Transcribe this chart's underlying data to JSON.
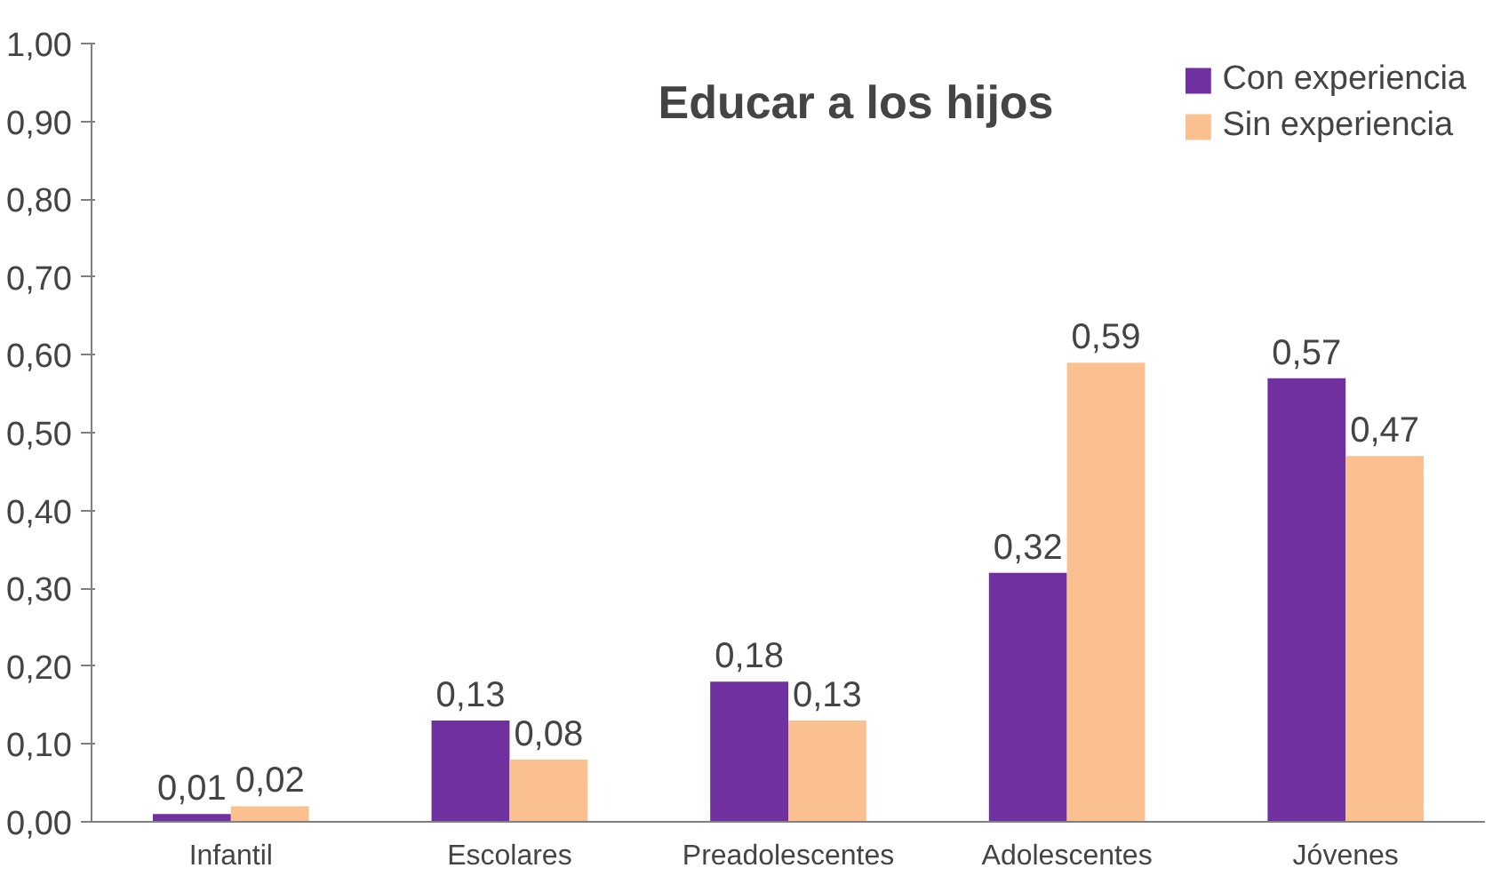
{
  "chart_data": {
    "type": "bar",
    "title": "Educar a los hijos",
    "categories": [
      "Infantil",
      "Escolares",
      "Preadolescentes",
      "Adolescentes",
      "Jóvenes"
    ],
    "series": [
      {
        "name": "Con experiencia",
        "color": "#7030a0",
        "values": [
          0.01,
          0.13,
          0.18,
          0.32,
          0.57
        ],
        "value_labels": [
          "0,01",
          "0,13",
          "0,18",
          "0,32",
          "0,57"
        ]
      },
      {
        "name": "Sin experiencia",
        "color": "#fac090",
        "values": [
          0.02,
          0.08,
          0.13,
          0.59,
          0.47
        ],
        "value_labels": [
          "0,02",
          "0,08",
          "0,13",
          "0,59",
          "0,47"
        ]
      }
    ],
    "ylim": [
      0,
      1
    ],
    "yticks": [
      {
        "value": 0,
        "label": "0,00"
      },
      {
        "value": 0.1,
        "label": "0,10"
      },
      {
        "value": 0.2,
        "label": "0,20"
      },
      {
        "value": 0.3,
        "label": "0,30"
      },
      {
        "value": 0.4,
        "label": "0,40"
      },
      {
        "value": 0.5,
        "label": "0,50"
      },
      {
        "value": 0.6,
        "label": "0,60"
      },
      {
        "value": 0.7,
        "label": "0,70"
      },
      {
        "value": 0.8,
        "label": "0,80"
      },
      {
        "value": 0.9,
        "label": "0,90"
      },
      {
        "value": 1,
        "label": "1,00"
      }
    ],
    "grid": false,
    "legend": "top right"
  }
}
